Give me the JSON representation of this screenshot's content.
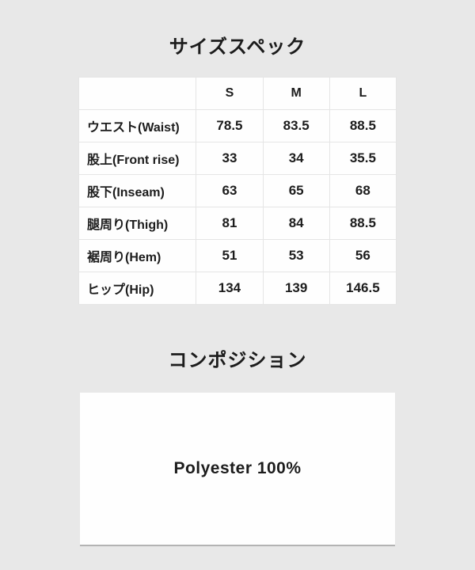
{
  "colors": {
    "page_background": "#e8e8e8",
    "panel_background": "#fefefe",
    "divider": "#e5e5e5",
    "text": "#1c1c1c",
    "box_bottom_edge": "#b3b3b3"
  },
  "size_section": {
    "title": "サイズスペック"
  },
  "size_table": {
    "columns": [
      "",
      "S",
      "M",
      "L"
    ],
    "rows": [
      {
        "label": "ウエスト(Waist)",
        "values": [
          "78.5",
          "83.5",
          "88.5"
        ]
      },
      {
        "label": "股上(Front rise)",
        "values": [
          "33",
          "34",
          "35.5"
        ]
      },
      {
        "label": "股下(Inseam)",
        "values": [
          "63",
          "65",
          "68"
        ]
      },
      {
        "label": "腿周り(Thigh)",
        "values": [
          "81",
          "84",
          "88.5"
        ]
      },
      {
        "label": "裾周り(Hem)",
        "values": [
          "51",
          "53",
          "56"
        ]
      },
      {
        "label": "ヒップ(Hip)",
        "values": [
          "134",
          "139",
          "146.5"
        ]
      }
    ]
  },
  "composition_section": {
    "title": "コンポジション",
    "value": "Polyester 100%"
  }
}
